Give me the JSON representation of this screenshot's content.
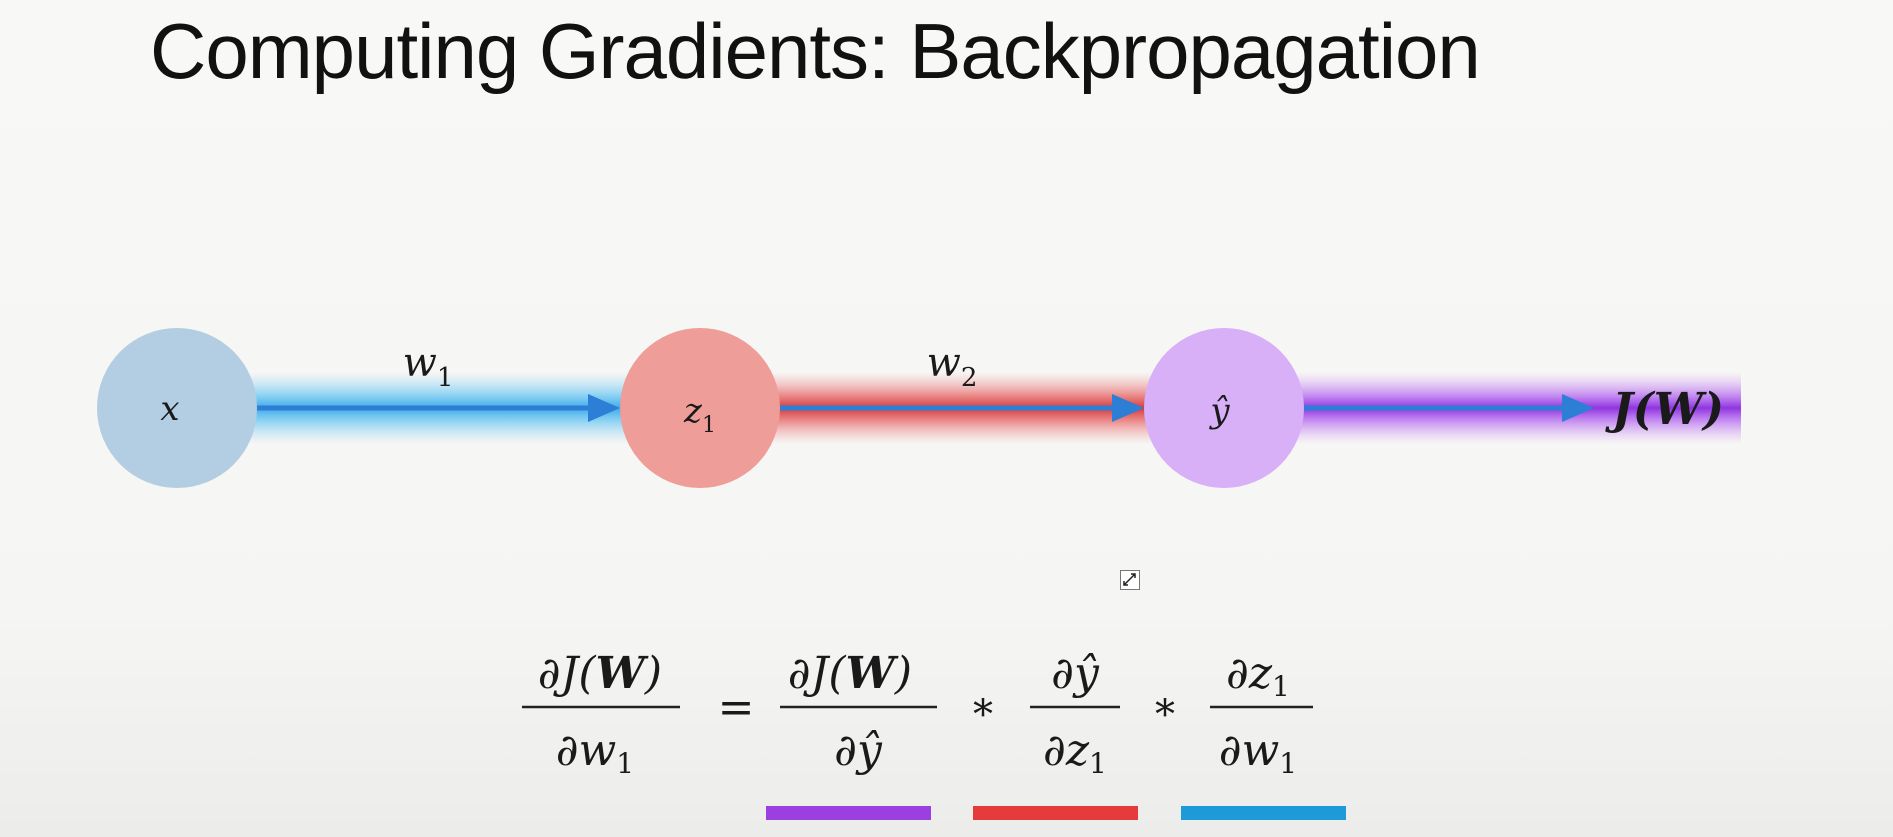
{
  "slide": {
    "title": "Computing Gradients: Backpropagation"
  },
  "graph": {
    "nodes": [
      {
        "id": "x",
        "label": "x",
        "color": "#b3cde3"
      },
      {
        "id": "z1",
        "label": "z",
        "subscript": "1",
        "color": "#ee9d98"
      },
      {
        "id": "yhat",
        "label": "ŷ",
        "color": "#d7b0f7"
      }
    ],
    "edges": [
      {
        "label": "w",
        "subscript": "1",
        "color": "#3ea6e8"
      },
      {
        "label": "w",
        "subscript": "2",
        "color": "#d9474a"
      },
      {
        "label": "J(W)",
        "color": "#9d46e6"
      }
    ]
  },
  "equation": {
    "lhs": {
      "num": [
        "∂J(",
        "W",
        ")"
      ],
      "den": [
        "∂w",
        "1"
      ]
    },
    "equals": "=",
    "times": "*",
    "terms": [
      {
        "num": [
          "∂J(",
          "W",
          ")"
        ],
        "den": [
          "∂ŷ",
          ""
        ],
        "underline_color": "#9b3fe0"
      },
      {
        "num": [
          "∂ŷ",
          ""
        ],
        "den": [
          "∂z",
          "1"
        ],
        "underline_color": "#e53b3b"
      },
      {
        "num": [
          "∂z",
          "1"
        ],
        "den": [
          "∂w",
          "1"
        ],
        "underline_color": "#1f9ad8"
      }
    ]
  },
  "icons": [
    "move-cursor-icon"
  ]
}
